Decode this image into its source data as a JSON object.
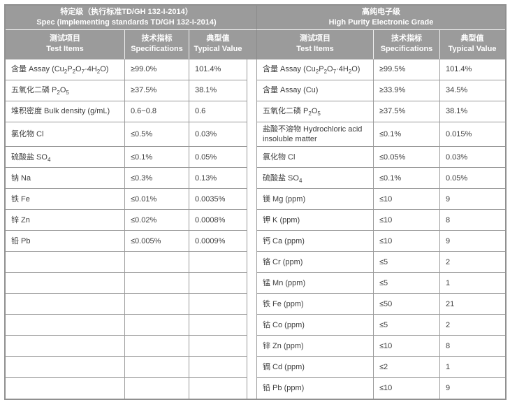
{
  "colors": {
    "header_bg": "#9b9b9b",
    "header_text": "#ffffff",
    "grid_border": "#9a9a9a",
    "outer_border": "#909090",
    "body_text": "#3e3e3e",
    "cell_bg": "#ffffff"
  },
  "sections": [
    {
      "title_zh": "特定级（执行标准TD/GH 132-I-2014）",
      "title_en": "Spec (implementing standards TD/GH 132-I-2014)",
      "columns": [
        {
          "zh": "测试项目",
          "en": "Test Items"
        },
        {
          "zh": "技术指标",
          "en": "Specifications"
        },
        {
          "zh": "典型值",
          "en": "Typical Value"
        }
      ],
      "rows": [
        {
          "item_html": "含量  Assay (Cu<sub>2</sub>P<sub>2</sub>O<sub>7</sub>·4H<sub>2</sub>O)",
          "spec": "≥99.0%",
          "typical": "101.4%"
        },
        {
          "item_html": "五氧化二磷  P<sub>2</sub>O<sub>5</sub>",
          "spec": "≥37.5%",
          "typical": "38.1%"
        },
        {
          "item_html": "堆积密度  Bulk density (g/mL)",
          "spec": "0.6~0.8",
          "typical": "0.6"
        },
        {
          "item_html": "氯化物  Cl",
          "spec": "≤0.5%",
          "typical": "0.03%",
          "tall": true
        },
        {
          "item_html": "硫酸盐  SO<sub>4</sub>",
          "spec": "≤0.1%",
          "typical": "0.05%"
        },
        {
          "item_html": "钠  Na",
          "spec": "≤0.3%",
          "typical": "0.13%"
        },
        {
          "item_html": "铁  Fe",
          "spec": "≤0.01%",
          "typical": "0.0035%"
        },
        {
          "item_html": "锌  Zn",
          "spec": "≤0.02%",
          "typical": "0.0008%"
        },
        {
          "item_html": "铅  Pb",
          "spec": "≤0.005%",
          "typical": "0.0009%"
        },
        {},
        {},
        {},
        {},
        {},
        {},
        {}
      ]
    },
    {
      "title_zh": "高纯电子级",
      "title_en": "High Purity Electronic Grade",
      "columns": [
        {
          "zh": "测试项目",
          "en": "Test Items"
        },
        {
          "zh": "技术指标",
          "en": "Specifications"
        },
        {
          "zh": "典型值",
          "en": "Typical Value"
        }
      ],
      "rows": [
        {
          "item_html": "含量  Assay (Cu<sub>2</sub>P<sub>2</sub>O<sub>7</sub>·4H<sub>2</sub>O)",
          "spec": "≥99.5%",
          "typical": "101.4%"
        },
        {
          "item_html": "含量  Assay (Cu)",
          "spec": "≥33.9%",
          "typical": "34.5%"
        },
        {
          "item_html": "五氧化二磷  P<sub>2</sub>O<sub>5</sub>",
          "spec": "≥37.5%",
          "typical": "38.1%"
        },
        {
          "item_html": "盐酸不溶物  Hydrochloric acid insoluble matter",
          "spec": "≤0.1%",
          "typical": "0.015%",
          "tall": true
        },
        {
          "item_html": "氯化物  Cl",
          "spec": "≤0.05%",
          "typical": "0.03%"
        },
        {
          "item_html": "硫酸盐  SO<sub>4</sub>",
          "spec": "≤0.1%",
          "typical": "0.05%"
        },
        {
          "item_html": "镁  Mg (ppm)",
          "spec": "≤10",
          "typical": "9"
        },
        {
          "item_html": "钾  K (ppm)",
          "spec": "≤10",
          "typical": "8"
        },
        {
          "item_html": "钙  Ca (ppm)",
          "spec": "≤10",
          "typical": "9"
        },
        {
          "item_html": "铬  Cr (ppm)",
          "spec": "≤5",
          "typical": "2"
        },
        {
          "item_html": "锰  Mn (ppm)",
          "spec": "≤5",
          "typical": "1"
        },
        {
          "item_html": "铁  Fe (ppm)",
          "spec": "≤50",
          "typical": "21"
        },
        {
          "item_html": "钴  Co (ppm)",
          "spec": "≤5",
          "typical": "2"
        },
        {
          "item_html": "锌  Zn (ppm)",
          "spec": "≤10",
          "typical": "8"
        },
        {
          "item_html": "镉  Cd (ppm)",
          "spec": "≤2",
          "typical": "1"
        },
        {
          "item_html": "铅  Pb (ppm)",
          "spec": "≤10",
          "typical": "9"
        }
      ]
    }
  ]
}
